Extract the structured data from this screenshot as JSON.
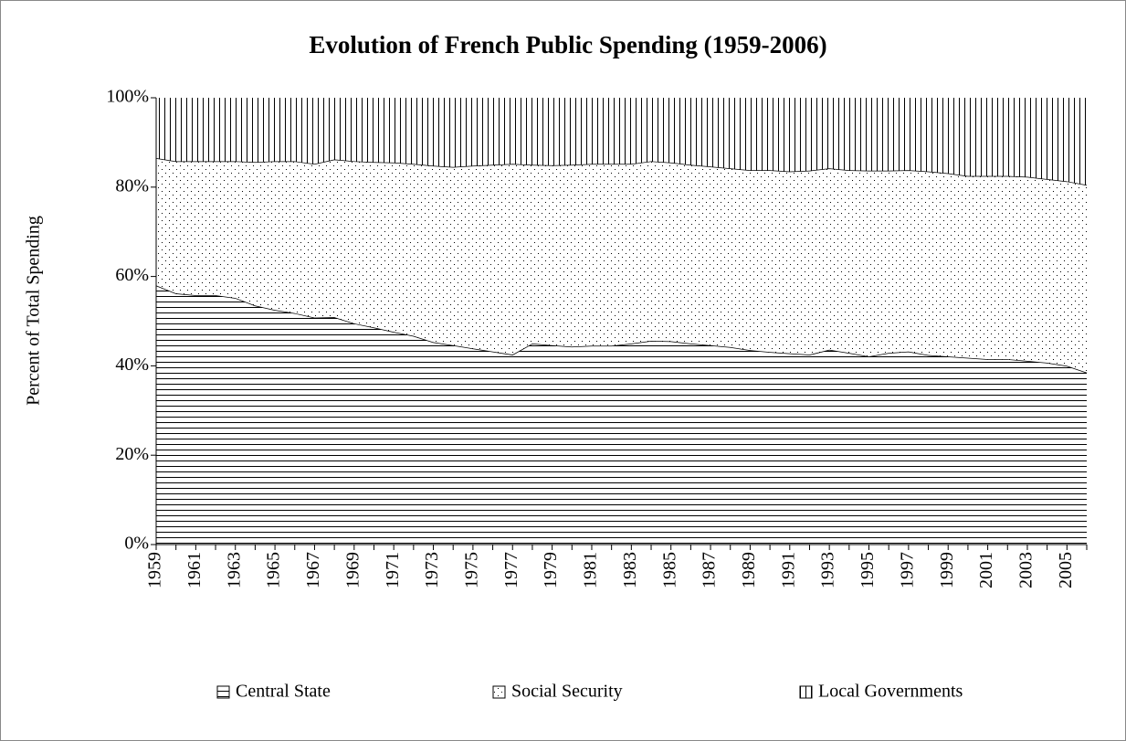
{
  "chart_data": {
    "type": "stacked_area",
    "title": "Evolution of French Public Spending (1959-2006)",
    "y_label": "Percent of Total Spending",
    "categories": [
      "1959",
      null,
      "1961",
      null,
      "1963",
      null,
      "1965",
      null,
      "1967",
      null,
      "1969",
      null,
      "1971",
      null,
      "1973",
      null,
      "1975",
      null,
      "1977",
      null,
      "1979",
      null,
      "1981",
      null,
      "1983",
      null,
      "1985",
      null,
      "1987",
      null,
      "1989",
      null,
      "1991",
      null,
      "1993",
      null,
      "1995",
      null,
      "1997",
      null,
      "1999",
      null,
      "2001",
      null,
      "2003",
      null,
      "2005",
      null
    ],
    "series": [
      {
        "name": "Central State",
        "color": "#000000",
        "pattern": "horizontal",
        "values": [
          58,
          56.2,
          55.8,
          55.8,
          55.2,
          53.5,
          52.5,
          51.8,
          50.8,
          50.9,
          49.5,
          48.6,
          47.6,
          46.7,
          45.3,
          44.6,
          43.9,
          43.2,
          42.5,
          45,
          44.6,
          44.3,
          44.5,
          44.5,
          45,
          45.6,
          45.5,
          45,
          44.6,
          44.2,
          43.5,
          43.1,
          42.8,
          42.5,
          43.6,
          42.9,
          42.1,
          42.9,
          43.2,
          42.4,
          42.1,
          41.8,
          41.5,
          41.5,
          41.1,
          40.7,
          40,
          38.5
        ]
      },
      {
        "name": "Social Security",
        "color": "#000000",
        "pattern": "dots",
        "values": [
          28.5,
          29.6,
          30,
          30,
          30.6,
          32.1,
          33.3,
          34,
          34.4,
          35.3,
          36.3,
          37,
          37.9,
          38.5,
          39.5,
          39.9,
          40.9,
          41.8,
          42.7,
          40,
          40.3,
          40.7,
          40.7,
          40.7,
          40.2,
          40.2,
          40,
          40,
          40,
          40,
          40.3,
          40.7,
          40.7,
          41.2,
          40.6,
          40.9,
          41.6,
          40.8,
          40.6,
          41.1,
          41,
          40.7,
          41,
          41,
          41.2,
          41.1,
          41.3,
          42
        ]
      },
      {
        "name": "Local Governments",
        "color": "#000000",
        "pattern": "vertical",
        "values": [
          13.5,
          14.2,
          14.2,
          14.2,
          14.2,
          14.4,
          14.2,
          14.2,
          14.8,
          13.8,
          14.2,
          14.4,
          14.5,
          14.8,
          15.2,
          15.5,
          15.2,
          15,
          14.8,
          15,
          15.1,
          15,
          14.8,
          14.8,
          14.8,
          14.2,
          14.5,
          15,
          15.4,
          15.8,
          16.2,
          16.2,
          16.5,
          16.3,
          15.8,
          16.2,
          16.3,
          16.3,
          16.2,
          16.5,
          16.9,
          17.5,
          17.5,
          17.5,
          17.7,
          18.2,
          18.7,
          19.5
        ]
      }
    ],
    "ylim": [
      0,
      100
    ],
    "yticks": [
      {
        "value": 0,
        "label": "0%"
      },
      {
        "value": 20,
        "label": "20%"
      },
      {
        "value": 40,
        "label": "40%"
      },
      {
        "value": 60,
        "label": "60%"
      },
      {
        "value": 80,
        "label": "80%"
      },
      {
        "value": 100,
        "label": "100%"
      }
    ],
    "legend": "bottom"
  }
}
